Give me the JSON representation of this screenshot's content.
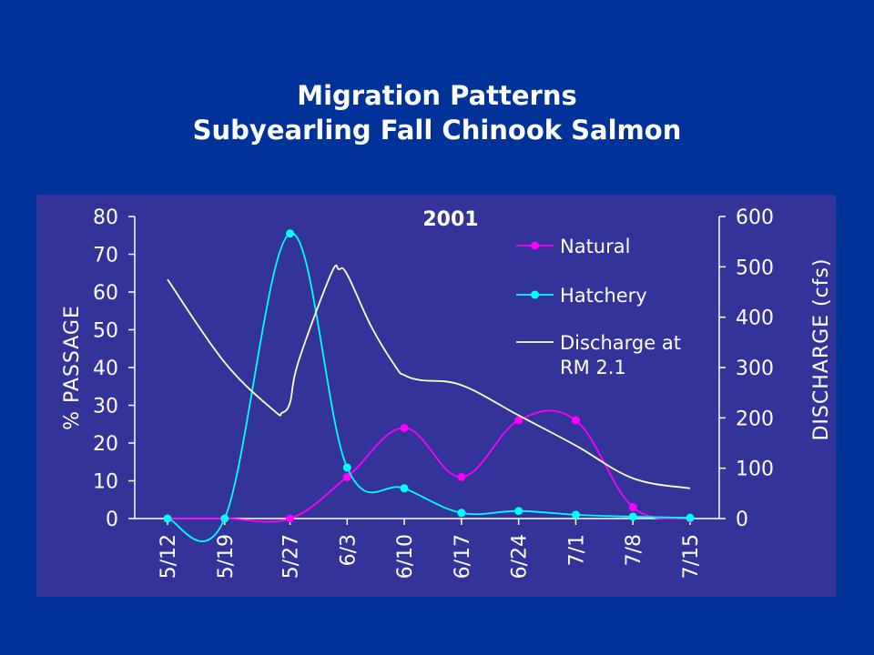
{
  "slide": {
    "title_line1": "Migration Patterns",
    "title_line2": "Subyearling Fall Chinook Salmon"
  },
  "chart_data": {
    "type": "line",
    "annotation": "2001",
    "x": [
      "5/12",
      "5/19",
      "5/27",
      "6/3",
      "6/10",
      "6/17",
      "6/24",
      "7/1",
      "7/8",
      "7/15"
    ],
    "ylabel": "% PASSAGE",
    "ylim": [
      0,
      80
    ],
    "yticks": [
      0,
      10,
      20,
      30,
      40,
      50,
      60,
      70,
      80
    ],
    "y2label": "DISCHARGE (cfs)",
    "y2lim": [
      0,
      600
    ],
    "y2ticks": [
      0,
      100,
      200,
      300,
      400,
      500,
      600
    ],
    "legend_position": "top-right",
    "series": [
      {
        "name": "Natural",
        "axis": "left",
        "color": "#ff00ff",
        "marker": "circle",
        "values": [
          0,
          0,
          0,
          11,
          24,
          11,
          26,
          26,
          3,
          0
        ]
      },
      {
        "name": "Hatchery",
        "axis": "left",
        "color": "#00ffff",
        "marker": "circle",
        "values": [
          0,
          0,
          75.5,
          13.5,
          8,
          1.5,
          2,
          1,
          0.5,
          0.2
        ]
      },
      {
        "name": "Discharge at RM 2.1",
        "legend_lines": [
          "Discharge at",
          "RM 2.1"
        ],
        "axis": "right",
        "color": "#ffffcc",
        "marker": "none",
        "x": [
          "5/12",
          "5/19",
          "5/25",
          "5/26",
          "5/27",
          "5/28",
          "6/1",
          "6/2",
          "6/3",
          "6/6",
          "6/9",
          "6/10",
          "6/12",
          "6/17",
          "6/24",
          "7/1",
          "7/8",
          "7/15"
        ],
        "values": [
          475,
          310,
          215,
          210,
          230,
          310,
          485,
          495,
          485,
          380,
          300,
          285,
          275,
          265,
          205,
          145,
          80,
          60
        ]
      }
    ]
  }
}
